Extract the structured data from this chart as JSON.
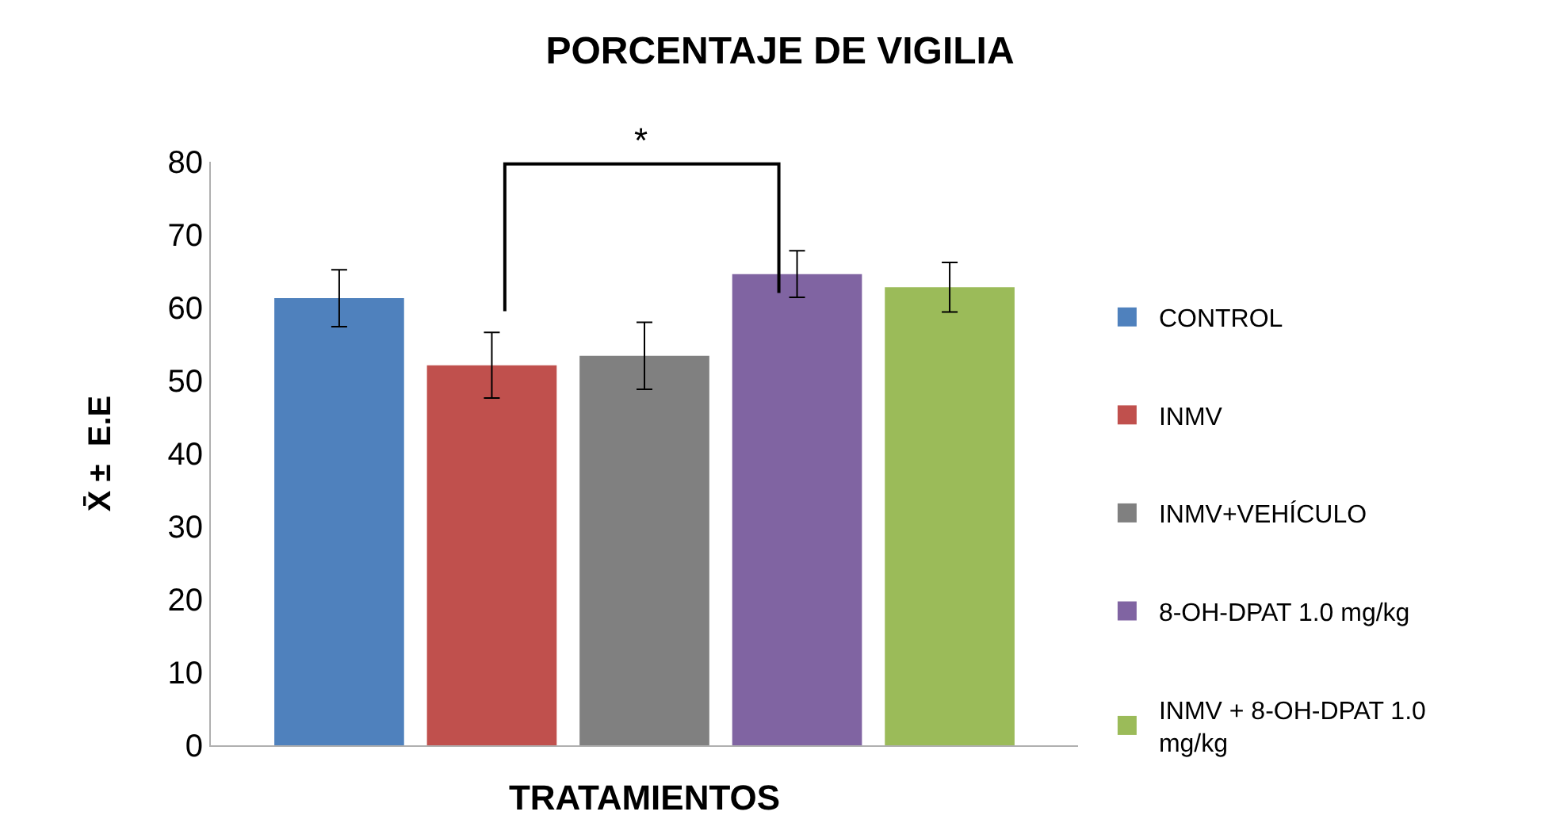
{
  "chart_data": {
    "type": "bar",
    "title": "PORCENTAJE DE VIGILIA",
    "xlabel": "TRATAMIENTOS",
    "ylabel": "X̄ ±  E.E",
    "categories": [
      null
    ],
    "series": [
      {
        "name": "CONTROL",
        "color": "#4f81bd",
        "values": [
          61.3
        ],
        "errors": [
          3.9
        ]
      },
      {
        "name": "INMV",
        "color": "#c0504d",
        "values": [
          52.1
        ],
        "errors": [
          4.5
        ]
      },
      {
        "name": "INMV+VEHÍCULO",
        "color": "#808080",
        "values": [
          53.4
        ],
        "errors": [
          4.6
        ]
      },
      {
        "name": "8-OH-DPAT 1.0 mg/kg",
        "color": "#8064a2",
        "values": [
          64.6
        ],
        "errors": [
          3.2
        ]
      },
      {
        "name": "INMV + 8-OH-DPAT 1.0 mg/kg",
        "color": "#9bbb59",
        "values": [
          62.8
        ],
        "errors": [
          3.4
        ]
      }
    ],
    "ylim": [
      0,
      80
    ],
    "yticks": [
      0,
      10,
      20,
      30,
      40,
      50,
      60,
      70,
      80
    ],
    "legend": "right",
    "annotations": [
      "*"
    ]
  }
}
